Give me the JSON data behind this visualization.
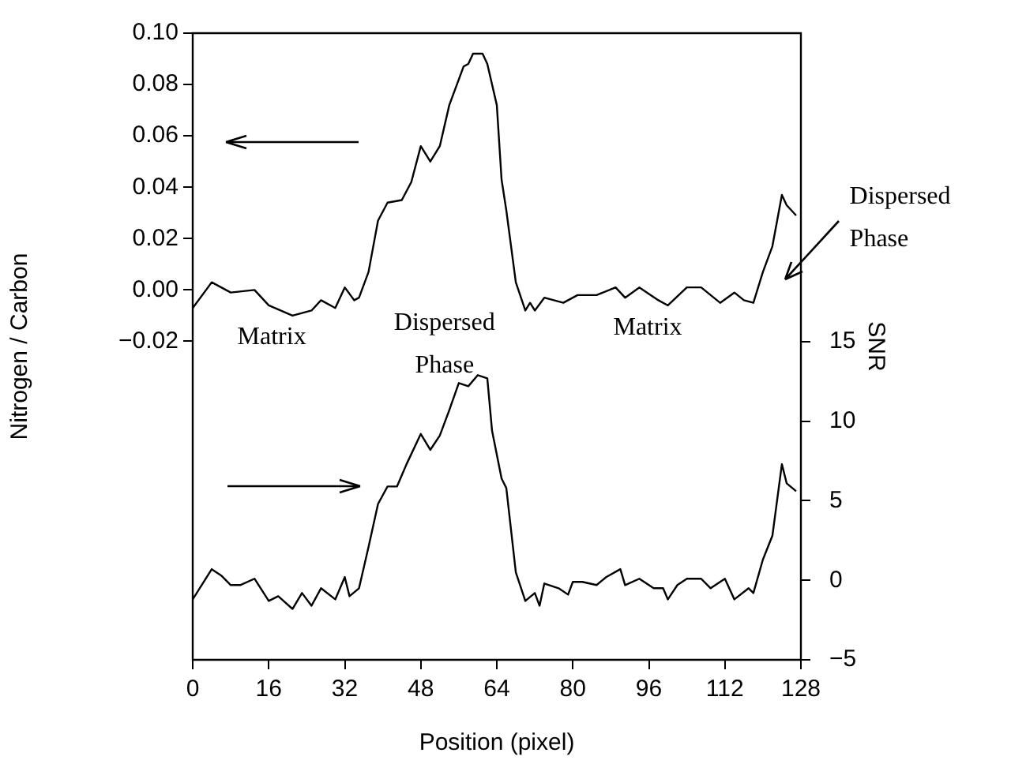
{
  "chart_data": {
    "type": "line",
    "xlabel": "Position (pixel)",
    "ylabel": "Nitrogen / Carbon",
    "y2label": "SNR",
    "xlim": [
      0,
      128
    ],
    "xticks": [
      0,
      16,
      32,
      48,
      64,
      80,
      96,
      112,
      128
    ],
    "ylim": [
      -0.144,
      0.1
    ],
    "yticks": [
      {
        "value": -0.02,
        "label": "−0.02"
      },
      {
        "value": 0,
        "label": "0.00"
      },
      {
        "value": 0.02,
        "label": "0.02"
      },
      {
        "value": 0.04,
        "label": "0.04"
      },
      {
        "value": 0.06,
        "label": "0.06"
      },
      {
        "value": 0.08,
        "label": "0.08"
      },
      {
        "value": 0.1,
        "label": "0.10"
      }
    ],
    "y2lim": [
      -5,
      34.4
    ],
    "y2ticks": [
      {
        "value": -5,
        "label": "−5"
      },
      0,
      5,
      10,
      15
    ],
    "legend": false,
    "marker": "none",
    "series": [
      {
        "color": "#000000",
        "x": [
          0,
          4,
          8,
          13,
          16,
          21,
          25,
          27,
          30,
          32,
          34,
          35,
          37,
          39,
          41,
          44,
          46,
          48,
          50,
          52,
          54,
          57,
          58,
          59,
          61,
          62,
          64,
          65,
          66,
          68,
          70,
          71,
          72,
          74,
          78,
          81,
          85,
          89,
          91,
          94,
          98,
          100,
          104,
          107,
          111,
          114,
          116,
          118,
          120,
          122,
          124,
          125,
          127
        ],
        "values": [
          -0.007,
          0.003,
          -0.001,
          0,
          -0.006,
          -0.01,
          -0.008,
          -0.004,
          -0.007,
          0.001,
          -0.004,
          -0.003,
          0.007,
          0.027,
          0.034,
          0.035,
          0.042,
          0.056,
          0.05,
          0.056,
          0.072,
          0.087,
          0.088,
          0.092,
          0.092,
          0.088,
          0.072,
          0.043,
          0.031,
          0.003,
          -0.008,
          -0.005,
          -0.008,
          -0.003,
          -0.005,
          -0.002,
          -0.002,
          0.001,
          -0.003,
          0.001,
          -0.004,
          -0.006,
          0.001,
          0.001,
          -0.005,
          -0.001,
          -0.004,
          -0.005,
          0.007,
          0.017,
          0.037,
          0.033,
          0.029
        ]
      },
      {
        "color": "#000000",
        "axis": "y2",
        "x": [
          0,
          4,
          6,
          8,
          10,
          13,
          16,
          18,
          21,
          23,
          25,
          27,
          30,
          32,
          33,
          35,
          37,
          39,
          41,
          43,
          45,
          48,
          50,
          52,
          54,
          56,
          58,
          60,
          62,
          63,
          65,
          66,
          68,
          70,
          72,
          73,
          74,
          77,
          79,
          80,
          82,
          85,
          87,
          90,
          91,
          94,
          97,
          99,
          100,
          102,
          104,
          107,
          109,
          112,
          114,
          117,
          118,
          120,
          122,
          124,
          125,
          127
        ],
        "values": [
          -1.2,
          0.7,
          0.3,
          -0.3,
          -0.3,
          0.1,
          -1.3,
          -1,
          -1.8,
          -0.8,
          -1.6,
          -0.5,
          -1.2,
          0.2,
          -1,
          -0.5,
          2.1,
          4.8,
          5.9,
          5.9,
          7.3,
          9.2,
          8.2,
          9.1,
          10.7,
          12.4,
          12.2,
          12.9,
          12.7,
          9.4,
          6.4,
          5.8,
          0.5,
          -1.3,
          -0.8,
          -1.6,
          -0.2,
          -0.5,
          -0.9,
          -0.1,
          -0.1,
          -0.3,
          0.2,
          0.7,
          -0.3,
          0.1,
          -0.5,
          -0.5,
          -1.2,
          -0.3,
          0.1,
          0.1,
          -0.5,
          0.1,
          -1.2,
          -0.5,
          -0.8,
          1.3,
          2.8,
          7.3,
          6.1,
          5.6
        ]
      }
    ],
    "annotations": [
      "Matrix",
      "Dispersed Phase",
      "Matrix",
      "Dispersed Phase"
    ]
  }
}
